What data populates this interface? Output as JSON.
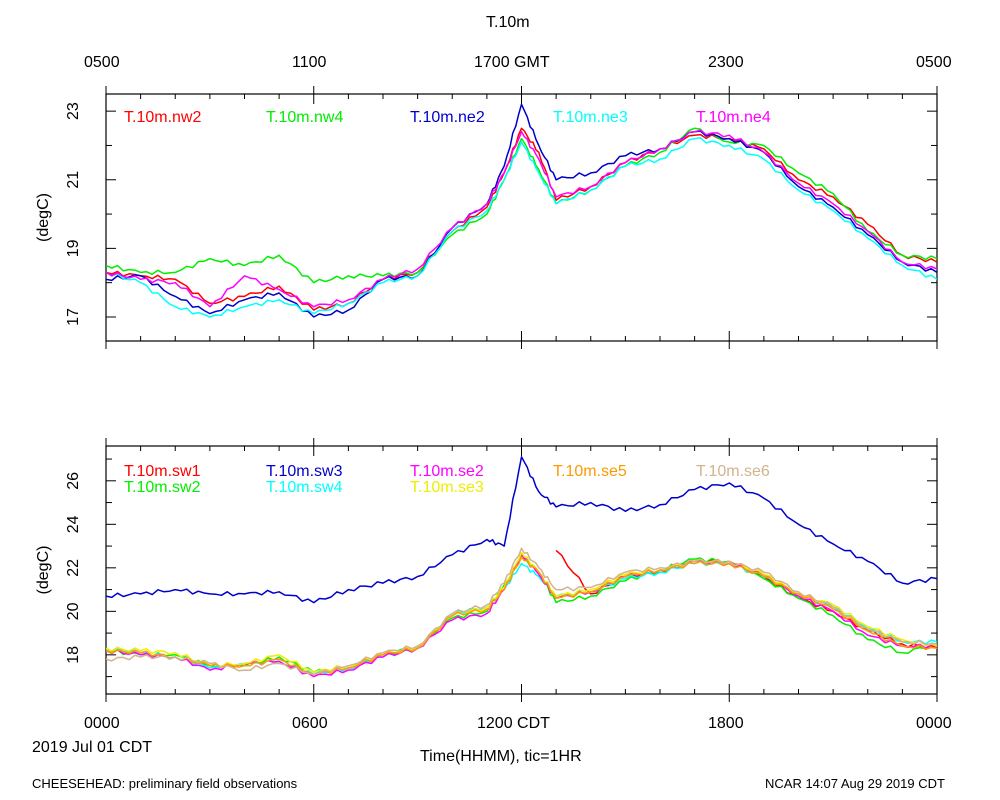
{
  "top_title": "T.10m",
  "top_time_ticks": [
    "0500",
    "1100",
    "1700 GMT",
    "2300",
    "0500"
  ],
  "bottom_time_ticks": [
    "0000",
    "0600",
    "1200 CDT",
    "1800",
    "0000"
  ],
  "date_label": "2019 Jul 01 CDT",
  "x_axis_label": "Time(HHMM), tic=1HR",
  "footer_left": "CHEESEHEAD: preliminary field observations",
  "footer_right": "NCAR 14:07 Aug 29 2019 CDT",
  "chart_data": [
    {
      "type": "line",
      "title": "T.10m",
      "xlabel": "Time(HHMM), tic=1HR",
      "ylabel": "(degC)",
      "x_unit": "hours since 0000 CDT",
      "xlim": [
        0,
        24
      ],
      "ylim": [
        16.3,
        23.5
      ],
      "y_ticks": [
        17,
        19,
        21,
        23
      ],
      "y_minor_ticks": [
        18,
        20,
        22
      ],
      "x": [
        0,
        1,
        2,
        3,
        4,
        5,
        6,
        7,
        8,
        9,
        10,
        11,
        11.5,
        12,
        12.5,
        13,
        14,
        15,
        16,
        17,
        18,
        19,
        20,
        21,
        22,
        23,
        24
      ],
      "series": [
        {
          "name": "T.10m.nw2",
          "color": "#ff0000",
          "values": [
            18.3,
            18.2,
            18.1,
            17.4,
            17.6,
            17.9,
            17.2,
            17.4,
            18.1,
            18.3,
            19.5,
            20.2,
            21.2,
            22.5,
            21.8,
            20.4,
            20.8,
            21.5,
            21.9,
            22.3,
            22.2,
            21.9,
            21.0,
            20.5,
            19.7,
            18.8,
            18.6
          ]
        },
        {
          "name": "T.10m.nw4",
          "color": "#00ee00",
          "values": [
            18.5,
            18.3,
            18.3,
            18.7,
            18.5,
            18.8,
            18.0,
            18.2,
            18.2,
            18.3,
            19.4,
            20.0,
            21.0,
            22.2,
            21.3,
            20.3,
            20.7,
            21.4,
            21.8,
            22.5,
            22.1,
            22.0,
            21.2,
            20.6,
            19.5,
            18.8,
            18.7
          ]
        },
        {
          "name": "T.10m.ne2",
          "color": "#0000cd",
          "values": [
            18.1,
            18.2,
            17.6,
            17.1,
            17.5,
            17.7,
            17.0,
            17.2,
            18.1,
            18.2,
            19.6,
            20.3,
            21.4,
            23.2,
            22.0,
            21.0,
            21.2,
            21.7,
            21.9,
            22.4,
            22.2,
            21.8,
            20.8,
            20.2,
            19.4,
            18.6,
            18.3
          ]
        },
        {
          "name": "T.10m.ne3",
          "color": "#00ffff",
          "values": [
            18.3,
            18.0,
            17.3,
            17.0,
            17.3,
            17.5,
            17.1,
            17.4,
            18.0,
            18.2,
            19.5,
            20.1,
            21.0,
            22.1,
            21.2,
            20.3,
            20.7,
            21.4,
            21.6,
            22.2,
            22.0,
            21.6,
            20.7,
            20.1,
            19.3,
            18.5,
            18.1
          ]
        },
        {
          "name": "T.10m.ne4",
          "color": "#ff00ff",
          "values": [
            18.3,
            18.1,
            18.0,
            17.3,
            18.2,
            17.8,
            17.3,
            17.5,
            18.1,
            18.4,
            19.6,
            20.3,
            21.2,
            22.4,
            21.6,
            20.5,
            20.8,
            21.5,
            21.9,
            22.4,
            22.3,
            21.8,
            20.9,
            20.3,
            19.5,
            18.6,
            18.4
          ]
        }
      ]
    },
    {
      "type": "line",
      "title": "",
      "xlabel": "Time(HHMM), tic=1HR",
      "ylabel": "(degC)",
      "x_unit": "hours since 0000 CDT",
      "xlim": [
        0,
        24
      ],
      "ylim": [
        16.2,
        27.6
      ],
      "y_ticks": [
        18,
        20,
        22,
        24,
        26
      ],
      "y_minor_ticks": [
        17,
        19,
        21,
        23,
        25,
        27
      ],
      "x": [
        0,
        1,
        2,
        3,
        4,
        5,
        6,
        7,
        8,
        9,
        10,
        11,
        11.5,
        12,
        12.5,
        13,
        14,
        15,
        16,
        17,
        18,
        19,
        20,
        21,
        22,
        23,
        24
      ],
      "series": [
        {
          "name": "T.10m.sw1",
          "color": "#ff0000",
          "values": [
            null,
            null,
            null,
            null,
            null,
            null,
            null,
            null,
            null,
            null,
            null,
            null,
            null,
            null,
            null,
            22.8,
            20.8,
            21.6,
            21.8,
            22.3,
            22.3,
            21.6,
            20.6,
            20.0,
            19.1,
            18.5,
            18.3
          ]
        },
        {
          "name": "T.10m.sw2",
          "color": "#00ee00",
          "values": [
            18.2,
            18.0,
            18.0,
            17.5,
            17.5,
            17.9,
            17.2,
            17.4,
            18.0,
            18.4,
            19.7,
            20.0,
            21.2,
            22.5,
            21.8,
            20.4,
            20.7,
            21.4,
            21.9,
            22.4,
            22.3,
            21.5,
            20.6,
            19.8,
            18.7,
            18.1,
            18.5
          ]
        },
        {
          "name": "T.10m.sw3",
          "color": "#0000cd",
          "values": [
            20.7,
            20.8,
            21.0,
            20.8,
            20.8,
            20.9,
            20.4,
            21.0,
            21.3,
            21.6,
            22.6,
            23.3,
            23.0,
            27.1,
            25.5,
            24.8,
            25.0,
            24.6,
            24.9,
            25.6,
            25.9,
            25.2,
            24.0,
            23.1,
            22.3,
            21.3,
            21.5
          ]
        },
        {
          "name": "T.10m.sw4",
          "color": "#00ffff",
          "values": [
            18.3,
            18.1,
            17.9,
            17.4,
            17.6,
            17.7,
            17.1,
            17.4,
            17.9,
            18.3,
            19.9,
            20.2,
            21.0,
            22.2,
            21.6,
            20.7,
            20.9,
            21.5,
            21.8,
            22.2,
            22.2,
            21.6,
            20.8,
            20.2,
            19.2,
            18.6,
            18.6
          ]
        },
        {
          "name": "T.10m.se2",
          "color": "#ff00ff",
          "values": [
            18.2,
            18.0,
            17.9,
            17.3,
            17.6,
            17.7,
            17.0,
            17.3,
            17.9,
            18.3,
            19.6,
            19.9,
            21.0,
            22.6,
            21.7,
            20.6,
            20.9,
            21.6,
            21.9,
            22.3,
            22.2,
            21.7,
            20.7,
            20.0,
            18.9,
            18.4,
            18.4
          ]
        },
        {
          "name": "T.10m.se3",
          "color": "#eeee00",
          "values": [
            18.3,
            18.2,
            18.1,
            17.5,
            17.6,
            18.0,
            17.2,
            17.5,
            18.0,
            18.4,
            19.8,
            20.2,
            21.1,
            22.7,
            21.8,
            20.7,
            21.0,
            21.7,
            21.9,
            22.3,
            22.3,
            21.7,
            20.8,
            20.3,
            19.3,
            18.7,
            18.4
          ]
        },
        {
          "name": "T.10m.se5",
          "color": "#ff9900",
          "values": [
            18.2,
            18.1,
            17.9,
            17.5,
            17.5,
            17.8,
            17.1,
            17.4,
            18.0,
            18.3,
            19.8,
            20.1,
            21.0,
            22.5,
            21.8,
            20.6,
            20.9,
            21.6,
            21.9,
            22.2,
            22.2,
            21.6,
            20.8,
            20.1,
            19.1,
            18.4,
            18.3
          ]
        },
        {
          "name": "T.10m.se6",
          "color": "#d2b48c",
          "values": [
            17.8,
            17.9,
            17.9,
            17.6,
            17.3,
            17.6,
            17.1,
            17.5,
            18.1,
            18.4,
            19.9,
            20.3,
            21.3,
            22.9,
            22.0,
            21.0,
            21.1,
            21.8,
            22.0,
            22.3,
            22.3,
            21.8,
            20.9,
            20.2,
            19.2,
            18.6,
            18.5
          ]
        }
      ]
    }
  ]
}
